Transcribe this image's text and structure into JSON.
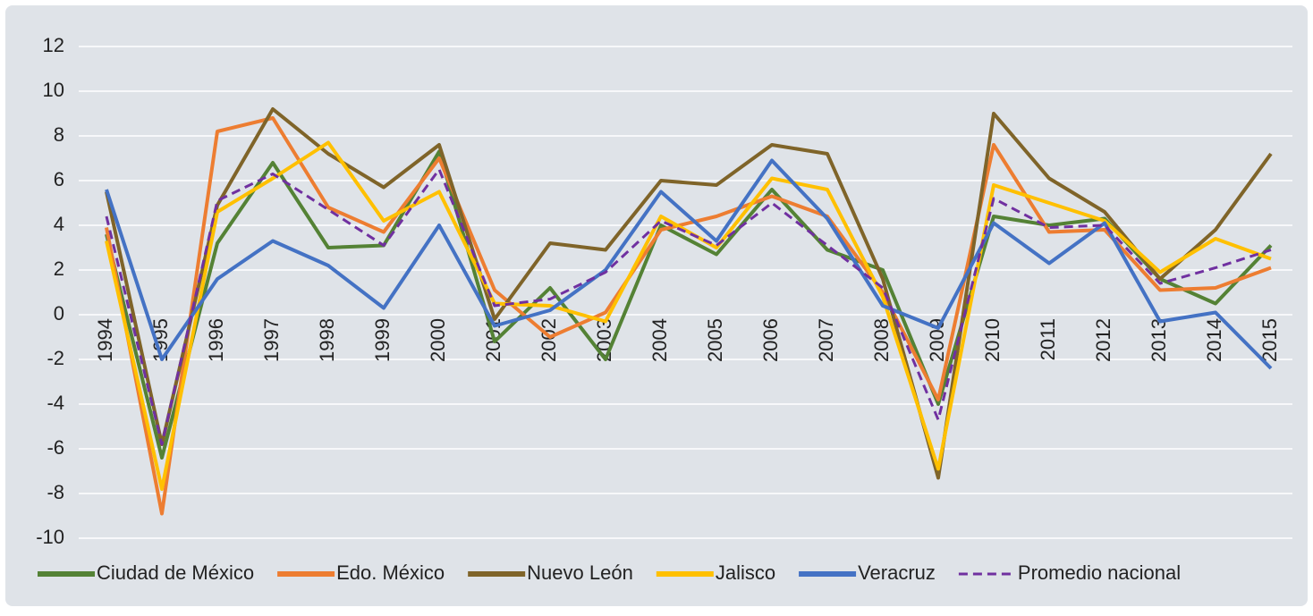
{
  "chart_data": {
    "type": "line",
    "categories": [
      "1994",
      "1995",
      "1996",
      "1997",
      "1998",
      "1999",
      "2000",
      "2001",
      "2002",
      "2003",
      "2004",
      "2005",
      "2006",
      "2007",
      "2008",
      "2009",
      "2010",
      "2011",
      "2012",
      "2013",
      "2014",
      "2015"
    ],
    "series": [
      {
        "name": "Ciudad de México",
        "color": "#548235",
        "values": [
          3.6,
          -6.4,
          3.2,
          6.8,
          3.0,
          3.1,
          7.3,
          -1.2,
          1.2,
          -2.0,
          4.0,
          2.7,
          5.6,
          2.9,
          2.0,
          -4.0,
          4.4,
          4.0,
          4.3,
          1.6,
          0.5,
          3.1
        ]
      },
      {
        "name": "Edo. México",
        "color": "#ed7d31",
        "values": [
          3.9,
          -8.9,
          8.2,
          8.8,
          4.8,
          3.7,
          7.0,
          1.1,
          -1.0,
          0.1,
          3.8,
          4.4,
          5.3,
          4.4,
          1.0,
          -3.8,
          7.6,
          3.7,
          3.8,
          1.1,
          1.2,
          2.1
        ]
      },
      {
        "name": "Nuevo León",
        "color": "#7f6429",
        "values": [
          5.5,
          -5.8,
          4.9,
          9.2,
          7.2,
          5.7,
          7.6,
          -0.2,
          3.2,
          2.9,
          6.0,
          5.8,
          7.6,
          7.2,
          1.6,
          -7.3,
          9.0,
          6.1,
          4.6,
          1.6,
          3.8,
          7.2
        ]
      },
      {
        "name": "Jalisco",
        "color": "#ffc000",
        "values": [
          3.3,
          -7.8,
          4.6,
          6.1,
          7.7,
          4.2,
          5.5,
          0.5,
          0.4,
          -0.3,
          4.4,
          3.0,
          6.1,
          5.6,
          0.8,
          -6.9,
          5.8,
          5.0,
          4.2,
          1.9,
          3.4,
          2.5
        ]
      },
      {
        "name": "Veracruz",
        "color": "#4472c4",
        "values": [
          5.6,
          -2.0,
          1.6,
          3.3,
          2.2,
          0.3,
          4.0,
          -0.5,
          0.2,
          2.0,
          5.5,
          3.3,
          6.9,
          4.3,
          0.4,
          -0.6,
          4.1,
          2.3,
          4.1,
          -0.3,
          0.1,
          -2.4
        ]
      },
      {
        "name": "Promedio nacional",
        "color": "#7030a0",
        "dashed": true,
        "values": [
          4.4,
          -5.8,
          5.1,
          6.3,
          4.7,
          3.1,
          6.5,
          0.4,
          0.7,
          1.9,
          4.2,
          3.1,
          5.0,
          3.1,
          1.2,
          -4.7,
          5.2,
          3.9,
          4.0,
          1.4,
          2.1,
          2.9
        ]
      }
    ],
    "ylim": [
      -10,
      12
    ],
    "yticks": [
      -10,
      -8,
      -6,
      -4,
      -2,
      0,
      2,
      4,
      6,
      8,
      10,
      12
    ],
    "grid": true,
    "legend": "bottom"
  }
}
